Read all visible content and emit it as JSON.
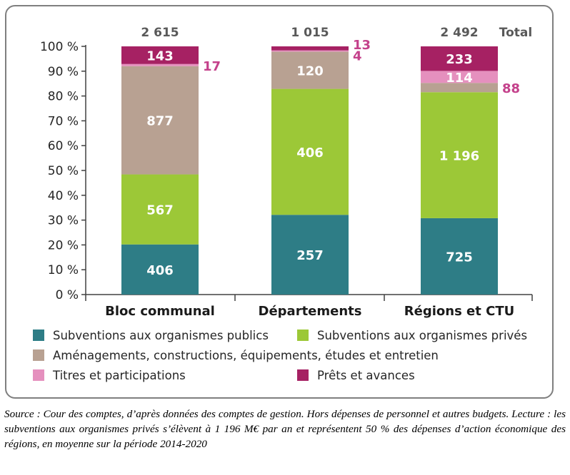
{
  "chart_data": {
    "type": "bar",
    "stacked": true,
    "normalized": true,
    "categories": [
      "Bloc communal",
      "Départements",
      "Régions et CTU"
    ],
    "totals": [
      "2 615",
      "1 015",
      "2 492"
    ],
    "total_label": "Total",
    "y_ticks": [
      "0 %",
      "10 %",
      "20 %",
      "30 %",
      "40 %",
      "50 %",
      "60 %",
      "70 %",
      "80 %",
      "90 %",
      "100 %"
    ],
    "ylim": [
      0,
      100
    ],
    "series": [
      {
        "name": "Subventions aux organismes publics",
        "color": "#2e7d86",
        "values": [
          406,
          257,
          725
        ],
        "labels": [
          "406",
          "257",
          "725"
        ]
      },
      {
        "name": "Subventions aux organismes privés",
        "color": "#9cc837",
        "values": [
          567,
          406,
          1196
        ],
        "labels": [
          "567",
          "406",
          "1 196"
        ]
      },
      {
        "name": "Aménagements, constructions, équipements, études et entretien",
        "color": "#b8a192",
        "values": [
          877,
          120,
          88
        ],
        "labels": [
          "877",
          "120",
          "88"
        ]
      },
      {
        "name": "Titres et participations",
        "color": "#e590be",
        "values": [
          17,
          4,
          114
        ],
        "labels": [
          "17",
          "4",
          "114"
        ]
      },
      {
        "name": "Prêts et avances",
        "color": "#a62163",
        "values": [
          143,
          13,
          233
        ],
        "labels": [
          "143",
          "13",
          "233"
        ]
      }
    ],
    "legend_position": "bottom",
    "grid": false
  },
  "source_text": "Source : Cour des comptes, d’après données des comptes de gestion. Hors dépenses de personnel et autres budgets. Lecture : les subventions aux organismes privés s’élèvent à 1 196 M€ par an et représentent 50 % des dépenses d’action économique des régions, en moyenne sur la période 2014-2020"
}
